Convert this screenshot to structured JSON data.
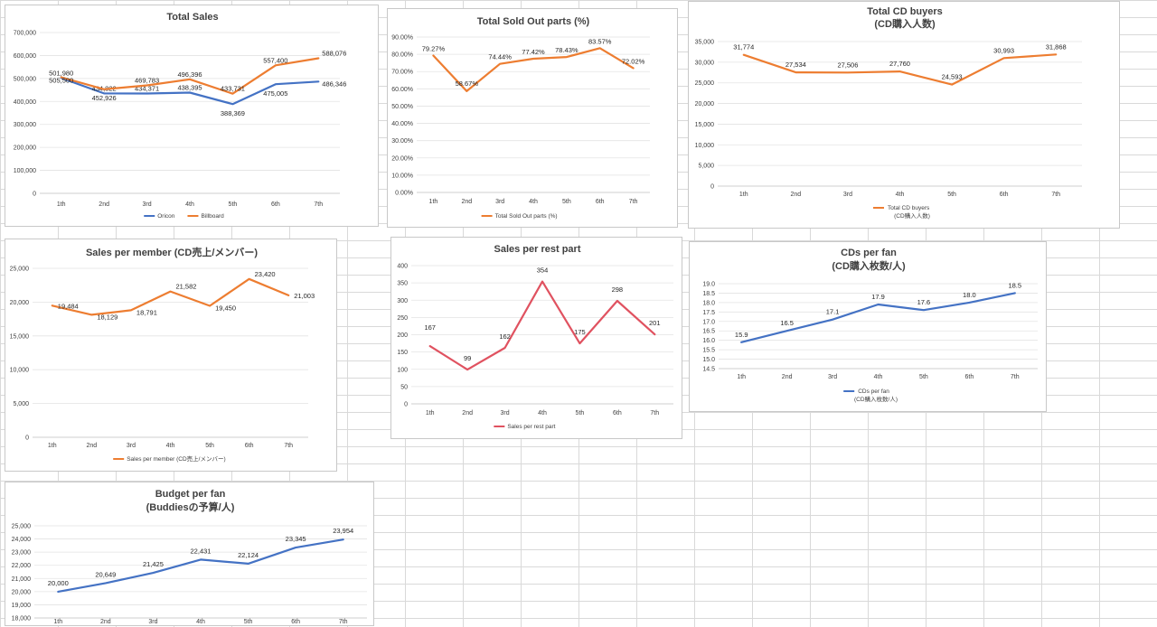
{
  "chart_data": [
    {
      "id": "total-sales",
      "type": "line",
      "title": [
        "Total Sales"
      ],
      "categories": [
        "1th",
        "2nd",
        "3rd",
        "4th",
        "5th",
        "6th",
        "7th"
      ],
      "yticks": [
        "0",
        "100,000",
        "200,000",
        "300,000",
        "400,000",
        "500,000",
        "600,000",
        "700,000"
      ],
      "ylim": [
        0,
        700000
      ],
      "series": [
        {
          "name": "Oricon",
          "color": "#4472c4",
          "values": [
            501980,
            434822,
            434371,
            438395,
            388369,
            475005,
            486346
          ],
          "labels": [
            "501,980",
            "434,822",
            "434,371",
            "438,395",
            "388,369",
            "475,005",
            "486,346"
          ]
        },
        {
          "name": "Billboard",
          "color": "#ed7d31",
          "values": [
            505500,
            452926,
            469783,
            496396,
            433731,
            557400,
            588076
          ],
          "labels": [
            "505,500",
            "452,926",
            "469,783",
            "496,396",
            "433,731",
            "557,400",
            "588,076"
          ]
        }
      ],
      "legend_lines": []
    },
    {
      "id": "sold-out-parts",
      "type": "line",
      "title": [
        "Total Sold Out parts (%)"
      ],
      "categories": [
        "1th",
        "2nd",
        "3rd",
        "4th",
        "5th",
        "6th",
        "7th"
      ],
      "yticks": [
        "0.00%",
        "10.00%",
        "20.00%",
        "30.00%",
        "40.00%",
        "50.00%",
        "60.00%",
        "70.00%",
        "80.00%",
        "90.00%"
      ],
      "ylim": [
        0,
        90
      ],
      "series": [
        {
          "name": "Total Sold Out parts (%)",
          "color": "#ed7d31",
          "values": [
            79.27,
            58.67,
            74.44,
            77.42,
            78.43,
            83.57,
            72.02
          ],
          "labels": [
            "79.27%",
            "58.67%",
            "74.44%",
            "77.42%",
            "78.43%",
            "83.57%",
            "72.02%"
          ]
        }
      ],
      "legend_lines": []
    },
    {
      "id": "cd-buyers",
      "type": "line",
      "title": [
        "Total CD buyers",
        "(CD購入人数)"
      ],
      "categories": [
        "1th",
        "2nd",
        "3rd",
        "4th",
        "5th",
        "6th",
        "7th"
      ],
      "yticks": [
        "0",
        "5,000",
        "10,000",
        "15,000",
        "20,000",
        "25,000",
        "30,000",
        "35,000"
      ],
      "ylim": [
        0,
        35000
      ],
      "series": [
        {
          "name": "Total CD buyers",
          "color": "#ed7d31",
          "values": [
            31774,
            27534,
            27506,
            27760,
            24593,
            30993,
            31868
          ],
          "labels": [
            "31,774",
            "27,534",
            "27,506",
            "27,760",
            "24,593",
            "30,993",
            "31,868"
          ]
        }
      ],
      "legend_lines": [
        "Total CD buyers",
        "(CD購入人数)"
      ]
    },
    {
      "id": "sales-per-member",
      "type": "line",
      "title": [
        "Sales per member (CD売上/メンバー)"
      ],
      "categories": [
        "1th",
        "2nd",
        "3rd",
        "4th",
        "5th",
        "6th",
        "7th"
      ],
      "yticks": [
        "0",
        "5,000",
        "10,000",
        "15,000",
        "20,000",
        "25,000"
      ],
      "ylim": [
        0,
        25000
      ],
      "series": [
        {
          "name": "Sales per member (CD売上/メンバー)",
          "color": "#ed7d31",
          "values": [
            19484,
            18129,
            18791,
            21582,
            19450,
            23420,
            21003
          ],
          "labels": [
            "19,484",
            "18,129",
            "18,791",
            "21,582",
            "19,450",
            "23,420",
            "21,003"
          ]
        }
      ],
      "legend_lines": []
    },
    {
      "id": "sales-per-rest-part",
      "type": "line",
      "title": [
        "Sales per rest part"
      ],
      "categories": [
        "1th",
        "2nd",
        "3rd",
        "4th",
        "5th",
        "6th",
        "7th"
      ],
      "yticks": [
        "0",
        "50",
        "100",
        "150",
        "200",
        "250",
        "300",
        "350",
        "400"
      ],
      "ylim": [
        0,
        400
      ],
      "series": [
        {
          "name": "Sales per rest part",
          "color": "#e05260",
          "values": [
            167,
            99,
            162,
            354,
            175,
            298,
            201
          ],
          "labels": [
            "167",
            "99",
            "162",
            "354",
            "175",
            "298",
            "201"
          ]
        }
      ],
      "legend_lines": []
    },
    {
      "id": "cds-per-fan",
      "type": "line",
      "title": [
        "CDs per fan",
        "(CD購入枚数/人)"
      ],
      "categories": [
        "1th",
        "2nd",
        "3rd",
        "4th",
        "5th",
        "6th",
        "7th"
      ],
      "yticks": [
        "14.5",
        "15.0",
        "15.5",
        "16.0",
        "16.5",
        "17.0",
        "17.5",
        "18.0",
        "18.5",
        "19.0"
      ],
      "ylim": [
        14.5,
        19.0
      ],
      "series": [
        {
          "name": "CDs per fan",
          "color": "#4472c4",
          "values": [
            15.9,
            16.5,
            17.1,
            17.9,
            17.6,
            18.0,
            18.5
          ],
          "labels": [
            "15.9",
            "16.5",
            "17.1",
            "17.9",
            "17.6",
            "18.0",
            "18.5"
          ]
        }
      ],
      "legend_lines": [
        "CDs per fan",
        "(CD購入枚数/人)"
      ]
    },
    {
      "id": "budget-per-fan",
      "type": "line",
      "title": [
        "Budget per fan",
        "(Buddiesの予算/人)"
      ],
      "categories": [
        "1th",
        "2nd",
        "3rd",
        "4th",
        "5th",
        "6th",
        "7th"
      ],
      "yticks": [
        "18,000",
        "19,000",
        "20,000",
        "21,000",
        "22,000",
        "23,000",
        "24,000",
        "25,000"
      ],
      "ylim": [
        18000,
        25000
      ],
      "series": [
        {
          "name": "Budget per fan",
          "color": "#4472c4",
          "values": [
            20000,
            20649,
            21425,
            22431,
            22124,
            23345,
            23954
          ],
          "labels": [
            "20,000",
            "20,649",
            "21,425",
            "22,431",
            "22,124",
            "23,345",
            "23,954"
          ]
        }
      ],
      "legend_lines": []
    }
  ]
}
